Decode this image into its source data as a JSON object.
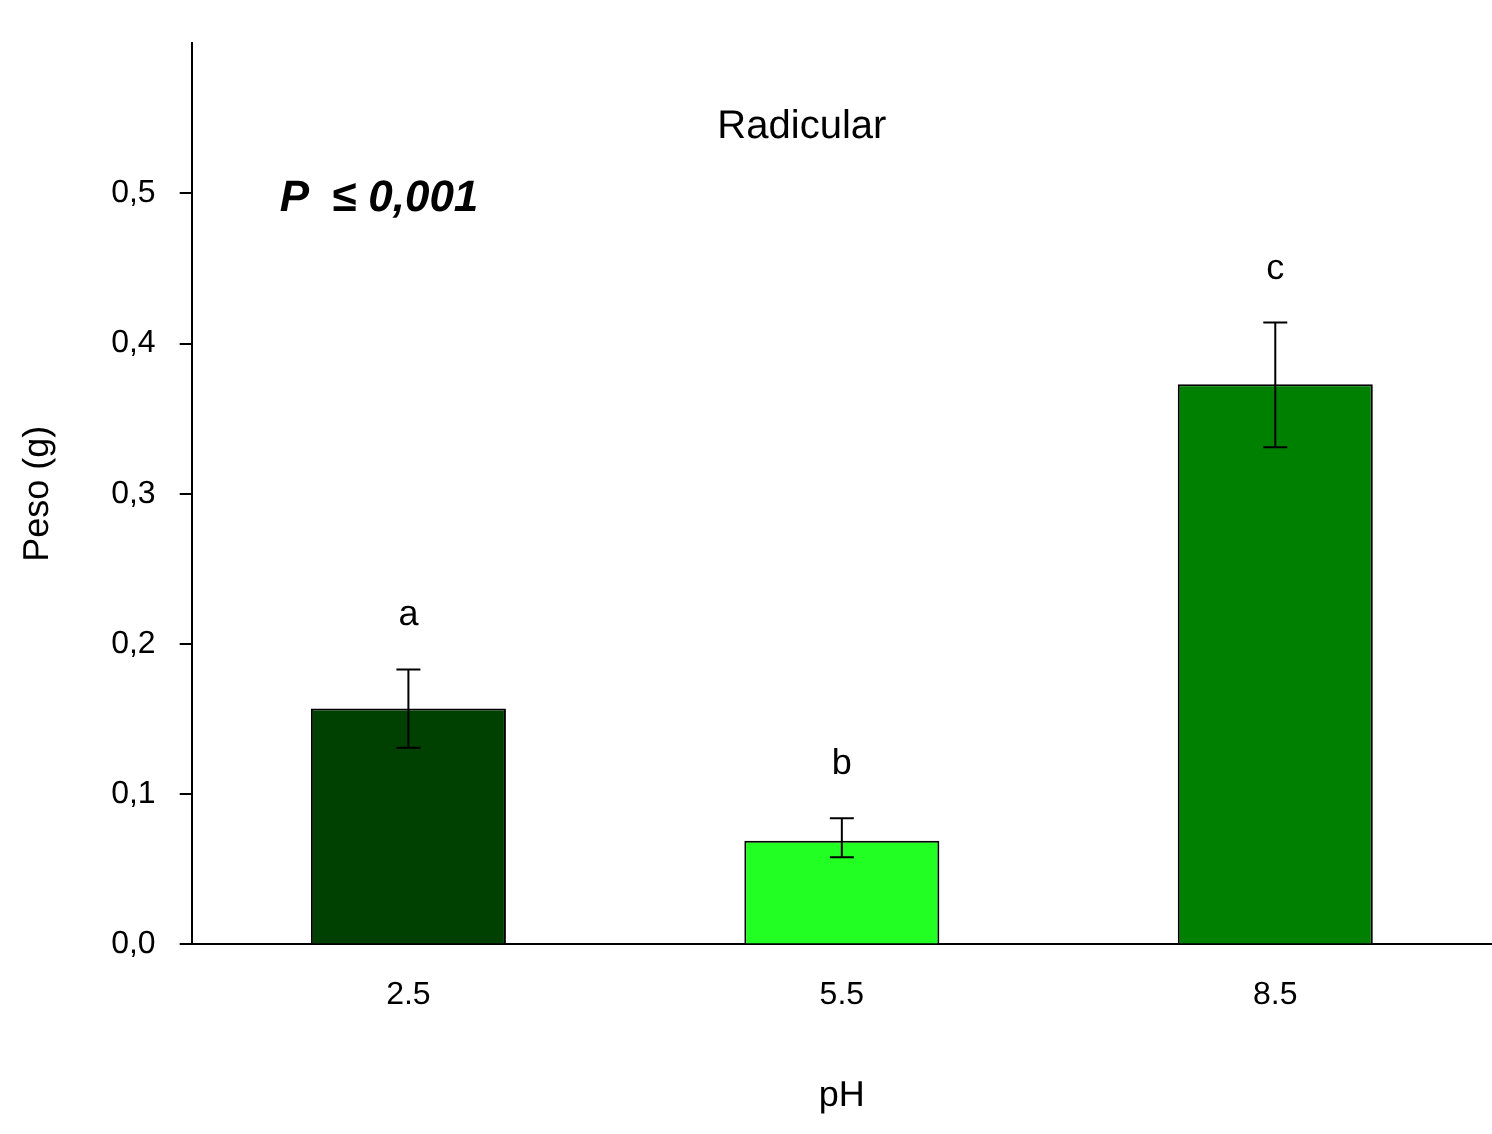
{
  "chart_data": {
    "type": "bar",
    "title": "Radicular",
    "xlabel": "pH",
    "ylabel": "Peso (g)",
    "categories": [
      "2.5",
      "5.5",
      "8.5"
    ],
    "values": [
      0.157,
      0.069,
      0.373
    ],
    "colors": [
      "#004000",
      "#22ff22",
      "#008000"
    ],
    "errors": [
      [
        0.131,
        0.183
      ],
      [
        0.058,
        0.084
      ],
      [
        0.331,
        0.414
      ]
    ],
    "ylim": [
      0,
      0.6
    ],
    "yticks": [
      {
        "value": 0,
        "label": "0,0"
      },
      {
        "value": 0.1,
        "label": "0,1"
      },
      {
        "value": 0.2,
        "label": "0,2"
      },
      {
        "value": 0.3,
        "label": "0,3"
      },
      {
        "value": 0.4,
        "label": "0,4"
      },
      {
        "value": 0.5,
        "label": "0,5"
      }
    ],
    "annotations": [
      "P  ≤ 0,001",
      "a",
      "b",
      "c"
    ],
    "grid": false,
    "legend": false
  }
}
